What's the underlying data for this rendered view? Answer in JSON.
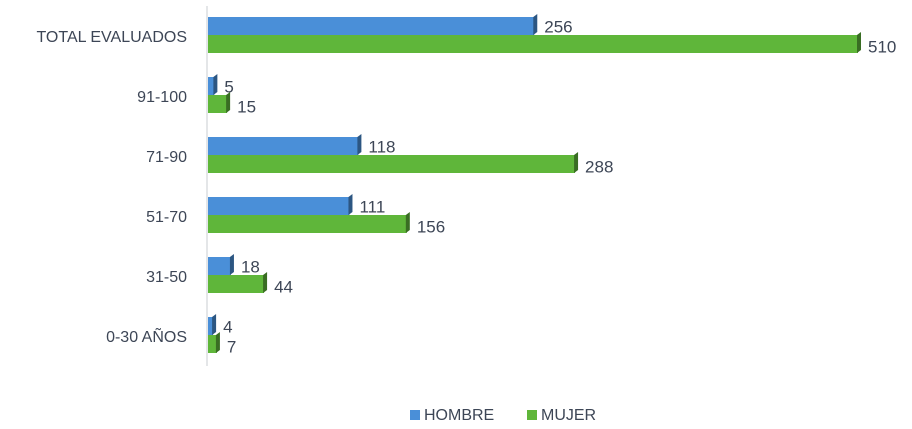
{
  "chart_data": {
    "type": "bar",
    "orientation": "horizontal",
    "categories": [
      "TOTAL EVALUADOS",
      "91-100",
      "71-90",
      "51-70",
      "31-50",
      "0-30 AÑOS"
    ],
    "series": [
      {
        "name": "HOMBRE",
        "color": "#4a8fd8",
        "values": [
          256,
          5,
          118,
          111,
          18,
          4
        ]
      },
      {
        "name": "MUJER",
        "color": "#5fb63a",
        "values": [
          510,
          15,
          288,
          156,
          44,
          7
        ]
      }
    ],
    "legend": "bottom"
  }
}
